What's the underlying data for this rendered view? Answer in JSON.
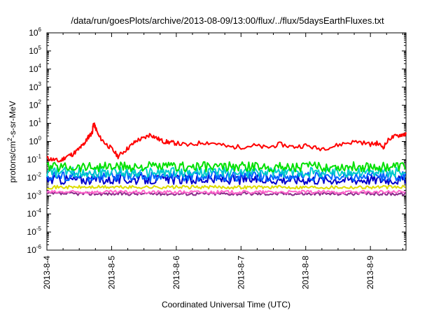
{
  "chart_data": {
    "type": "line",
    "title": "/data/run/goesPlots/archive/2013-08-09/13:00/flux/../flux/5daysEarthFluxes.txt",
    "xlabel": "Coordinated Universal Time (UTC)",
    "ylabel": {
      "pre": "protons/cm",
      "sup": "2",
      "post": "-s-sr-MeV"
    },
    "yscale": "log",
    "ylim": [
      1e-06,
      1000000.0
    ],
    "xlim": [
      0,
      5.55
    ],
    "x_unit": "days since 2013-8-4 00:00",
    "y_ticks": [
      {
        "base": "10",
        "exp": "-6",
        "value": 1e-06
      },
      {
        "base": "10",
        "exp": "-5",
        "value": 1e-05
      },
      {
        "base": "10",
        "exp": "-4",
        "value": 0.0001
      },
      {
        "base": "10",
        "exp": "-3",
        "value": 0.001
      },
      {
        "base": "10",
        "exp": "-2",
        "value": 0.01
      },
      {
        "base": "10",
        "exp": "-1",
        "value": 0.1
      },
      {
        "base": "10",
        "exp": "0",
        "value": 1
      },
      {
        "base": "10",
        "exp": "1",
        "value": 10
      },
      {
        "base": "10",
        "exp": "2",
        "value": 100
      },
      {
        "base": "10",
        "exp": "3",
        "value": 1000
      },
      {
        "base": "10",
        "exp": "4",
        "value": 10000
      },
      {
        "base": "10",
        "exp": "5",
        "value": 100000
      },
      {
        "base": "10",
        "exp": "6",
        "value": 1000000
      }
    ],
    "x_ticks": [
      {
        "label": "2013-8-4",
        "value": 0
      },
      {
        "label": "2013-8-5",
        "value": 1
      },
      {
        "label": "2013-8-6",
        "value": 2
      },
      {
        "label": "2013-8-7",
        "value": 3
      },
      {
        "label": "2013-8-8",
        "value": 4
      },
      {
        "label": "2013-8-9",
        "value": 5
      }
    ],
    "grid": false,
    "legend": "none",
    "series": [
      {
        "color": "#ff0000",
        "x": [
          0,
          0.1,
          0.2,
          0.3,
          0.4,
          0.5,
          0.55,
          0.6,
          0.65,
          0.7,
          0.72,
          0.75,
          0.8,
          0.9,
          1.0,
          1.1,
          1.2,
          1.3,
          1.4,
          1.5,
          1.6,
          1.7,
          1.8,
          1.9,
          2.0,
          2.2,
          2.4,
          2.6,
          2.8,
          3.0,
          3.2,
          3.4,
          3.6,
          3.8,
          4.0,
          4.2,
          4.4,
          4.6,
          4.8,
          5.0,
          5.1,
          5.2,
          5.3,
          5.4,
          5.5,
          5.55
        ],
        "values": [
          0.12,
          0.1,
          0.08,
          0.15,
          0.2,
          0.4,
          0.6,
          1.0,
          2.0,
          3.0,
          10.0,
          6.0,
          2.0,
          0.8,
          0.4,
          0.15,
          0.3,
          0.6,
          1.2,
          1.5,
          2.5,
          1.5,
          1.0,
          0.9,
          0.8,
          0.6,
          0.9,
          0.8,
          0.5,
          0.5,
          0.6,
          0.45,
          0.7,
          0.5,
          0.6,
          0.4,
          0.5,
          0.8,
          1.0,
          0.7,
          0.8,
          0.5,
          1.5,
          2.0,
          2.5,
          2.5
        ]
      },
      {
        "color": "#00e000",
        "values_mean": 0.04
      },
      {
        "color": "#00cccc",
        "values_mean": 0.02
      },
      {
        "color": "#0066ff",
        "values_mean": 0.012
      },
      {
        "color": "#0000cc",
        "values_mean": 0.008
      },
      {
        "color": "#dddd00",
        "values_mean": 0.003
      },
      {
        "color": "#ff66cc",
        "values_mean": 0.0016
      },
      {
        "color": "#8a2a8a",
        "values_mean": 0.0013
      }
    ]
  }
}
